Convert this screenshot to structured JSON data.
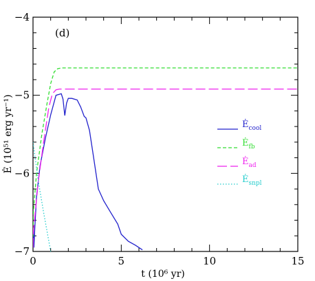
{
  "chart_data": {
    "type": "line",
    "panel_label": "(d)",
    "xlabel": "t (10⁶ yr)",
    "ylabel": "Ė (10⁵¹ erg yr⁻¹)",
    "xlim": [
      0,
      15
    ],
    "ylim": [
      -7,
      -4
    ],
    "xticks": [
      0,
      5,
      10,
      15
    ],
    "yticks": [
      -7,
      -6,
      -5,
      -4
    ],
    "grid": false,
    "legend_placement": "center-right",
    "series": [
      {
        "name": "Ėcool",
        "label_main": "Ė",
        "label_sub": "cool",
        "color": "#2222cc",
        "dash": "solid",
        "x": [
          0.0,
          0.02,
          0.05,
          0.1,
          0.2,
          0.4,
          0.7,
          1.0,
          1.3,
          1.6,
          1.7,
          1.8,
          1.9,
          2.0,
          2.2,
          2.5,
          2.7,
          2.9,
          3.0,
          3.2,
          3.4,
          3.7,
          4.0,
          4.4,
          4.8,
          5.0,
          5.4,
          5.8,
          6.2
        ],
        "y": [
          -6.85,
          -6.7,
          -6.95,
          -6.7,
          -6.3,
          -5.9,
          -5.55,
          -5.25,
          -5.0,
          -4.98,
          -5.05,
          -5.26,
          -5.1,
          -5.04,
          -5.04,
          -5.06,
          -5.15,
          -5.27,
          -5.29,
          -5.45,
          -5.75,
          -6.2,
          -6.35,
          -6.5,
          -6.65,
          -6.78,
          -6.87,
          -6.92,
          -6.98
        ]
      },
      {
        "name": "Ėfb",
        "label_main": "Ė",
        "label_sub": "fb",
        "color": "#33dd33",
        "dash": "short-dash",
        "x": [
          0.0,
          0.02,
          0.2,
          0.5,
          0.8,
          1.0,
          1.2,
          1.4,
          1.6,
          2.0,
          15.0
        ],
        "y": [
          -6.95,
          -6.5,
          -6.0,
          -5.5,
          -5.1,
          -4.85,
          -4.7,
          -4.66,
          -4.65,
          -4.65,
          -4.65
        ]
      },
      {
        "name": "Ėad",
        "label_main": "Ė",
        "label_sub": "ad",
        "color": "#ee22ee",
        "dash": "long-dash",
        "x": [
          0.0,
          0.02,
          0.3,
          0.6,
          0.9,
          1.1,
          1.3,
          1.5,
          2.0,
          15.0
        ],
        "y": [
          -6.95,
          -6.75,
          -6.1,
          -5.6,
          -5.15,
          -4.98,
          -4.93,
          -4.92,
          -4.92,
          -4.92
        ]
      },
      {
        "name": "Ėsnpl",
        "label_main": "Ė",
        "label_sub": "snpl",
        "color": "#22cccc",
        "dash": "dotted",
        "x": [
          0.0,
          0.15,
          0.3,
          0.6,
          1.0
        ],
        "y": [
          -5.6,
          -5.85,
          -6.1,
          -6.5,
          -7.0
        ]
      }
    ]
  }
}
